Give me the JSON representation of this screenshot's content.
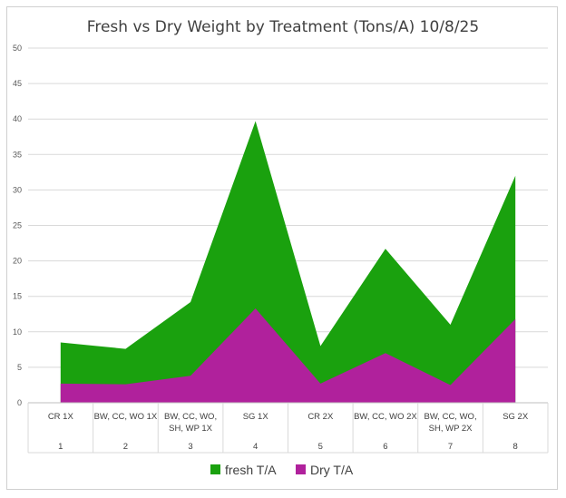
{
  "chart_data": {
    "type": "area",
    "title": "Fresh vs Dry Weight by Treatment (Tons/A) 10/8/25",
    "categories": [
      "CR 1X",
      "BW, CC, WO 1X",
      "BW, CC, WO, SH, WP 1X",
      "SG 1X",
      "CR 2X",
      "BW, CC, WO 2X",
      "BW, CC, WO, SH, WP 2X",
      "SG 2X"
    ],
    "category_lines": [
      [
        "CR 1X"
      ],
      [
        "BW, CC, WO 1X"
      ],
      [
        "BW, CC, WO,",
        "SH, WP 1X"
      ],
      [
        "SG 1X"
      ],
      [
        "CR 2X"
      ],
      [
        "BW, CC, WO 2X"
      ],
      [
        "BW, CC, WO,",
        "SH, WP 2X"
      ],
      [
        "SG 2X"
      ]
    ],
    "category_index": [
      "1",
      "2",
      "3",
      "4",
      "5",
      "6",
      "7",
      "8"
    ],
    "series": [
      {
        "name": "fresh T/A",
        "color": "#1aa10e",
        "values": [
          8.5,
          7.6,
          14.2,
          39.7,
          8.0,
          21.7,
          11.0,
          32.0
        ]
      },
      {
        "name": "Dry T/A",
        "color": "#b0219c",
        "values": [
          2.7,
          2.6,
          3.8,
          13.3,
          2.7,
          7.0,
          2.5,
          11.8
        ]
      }
    ],
    "yticks": [
      "0",
      "5",
      "10",
      "15",
      "20",
      "25",
      "30",
      "35",
      "40",
      "45",
      "50"
    ],
    "ylim": [
      0,
      50
    ],
    "grid": true,
    "legend_position": "bottom"
  }
}
